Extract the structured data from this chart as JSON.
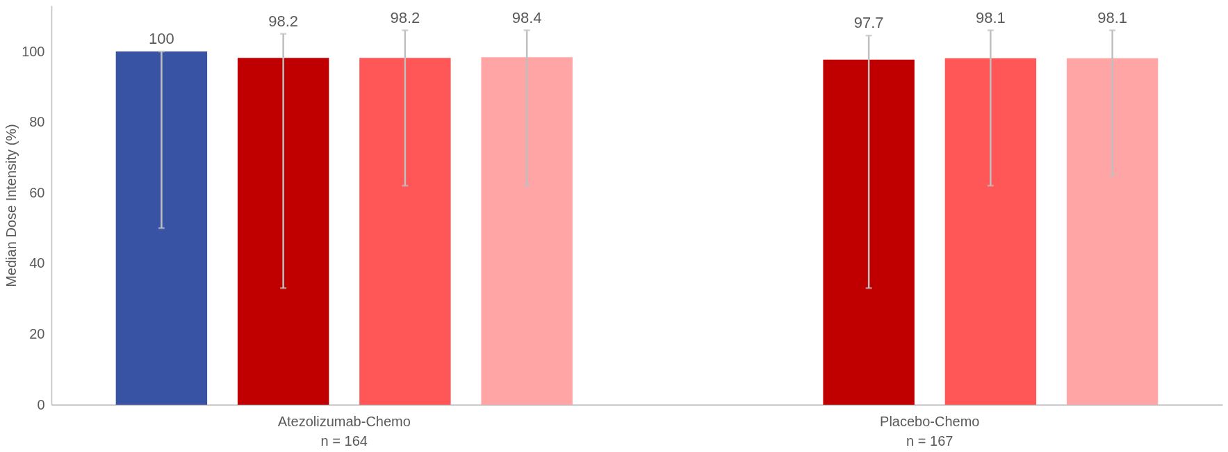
{
  "chart_data": {
    "type": "bar",
    "ylabel": "Median Dose Intensity (%)",
    "categories": [
      "Atezolizumab-Chemo\nn = 164",
      "Placebo-Chemo\nn = 167"
    ],
    "series": [
      {
        "color": "#3953a4",
        "values": [
          100,
          0
        ],
        "errors": [
          [
            50,
            100
          ],
          null
        ],
        "value_labels": [
          "100",
          null
        ]
      },
      {
        "color": "#c00000",
        "values": [
          98.2,
          97.7
        ],
        "errors": [
          [
            33,
            105
          ],
          [
            33,
            104.5
          ]
        ],
        "value_labels": [
          "98.2",
          "97.7"
        ]
      },
      {
        "color": "#ff5757",
        "values": [
          98.2,
          98.1
        ],
        "errors": [
          [
            62,
            106
          ],
          [
            62,
            106
          ]
        ],
        "value_labels": [
          "98.2",
          "98.1"
        ]
      },
      {
        "color": "#ffa5a5",
        "values": [
          98.4,
          98.1
        ],
        "errors": [
          [
            62,
            106
          ],
          [
            65,
            106
          ]
        ],
        "value_labels": [
          "98.4",
          "98.1"
        ]
      }
    ],
    "ylim": [
      0,
      113
    ],
    "yticks": [
      0,
      20,
      40,
      60,
      80,
      100
    ]
  }
}
